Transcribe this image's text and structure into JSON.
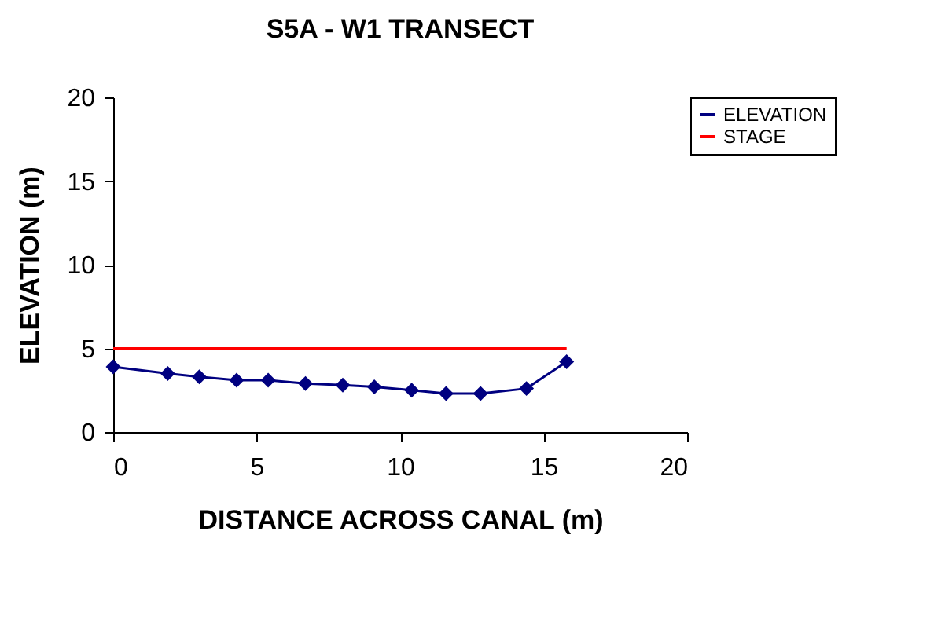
{
  "chart_data": {
    "type": "line",
    "title": "S5A - W1 TRANSECT",
    "xlabel": "DISTANCE ACROSS CANAL (m)",
    "ylabel": "ELEVATION (m)",
    "xlim": [
      0,
      20
    ],
    "xticks": [
      0,
      5,
      10,
      15,
      20
    ],
    "ylim": [
      0,
      20
    ],
    "yticks": [
      0,
      5,
      10,
      15,
      20
    ],
    "legend": "top right",
    "grid": false,
    "series": [
      {
        "name": "ELEVATION",
        "color": "#000080",
        "marker": "diamond",
        "x": [
          0,
          1.9,
          3.0,
          4.3,
          5.4,
          6.7,
          8.0,
          9.1,
          10.4,
          11.6,
          12.8,
          14.4,
          15.8
        ],
        "values": [
          3.9,
          3.5,
          3.3,
          3.1,
          3.1,
          2.9,
          2.8,
          2.7,
          2.5,
          2.3,
          2.3,
          2.6,
          4.2
        ]
      },
      {
        "name": "STAGE",
        "color": "#ff0000",
        "marker": "none",
        "x": [
          0,
          15.8
        ],
        "values": [
          5.0,
          5.0
        ]
      }
    ]
  }
}
